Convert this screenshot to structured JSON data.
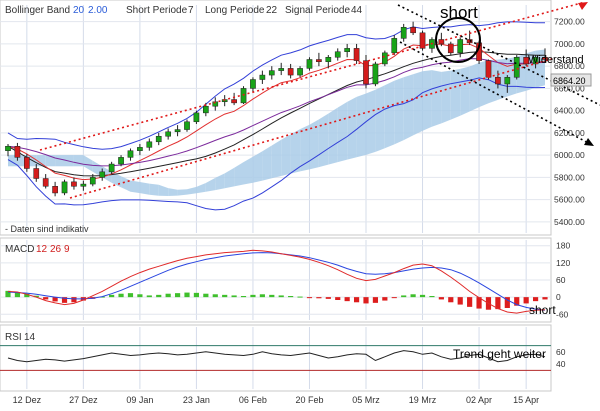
{
  "chart_data": [
    {
      "panel": "price",
      "type": "candlestick",
      "title": "Bollinger Band",
      "indicator_params": {
        "bollinger_period": "20",
        "bollinger_dev": "2.00",
        "short_label": "Short Periode",
        "short_value": "7",
        "long_label": "Long Periode",
        "long_value": "22",
        "signal_label": "Signal Periode",
        "signal_value": "44"
      },
      "ylim": [
        5300,
        7350
      ],
      "yticks": [
        "7200.00",
        "7000.00",
        "6800.00",
        "6600.00",
        "6400.00",
        "6200.00",
        "6000.00",
        "5800.00",
        "5600.00",
        "5400.00"
      ],
      "ytick_values": [
        7200,
        7000,
        6800,
        6600,
        6400,
        6200,
        6000,
        5800,
        5600,
        5400
      ],
      "last_price_label": "6864.20",
      "note": "- Daten sind indikativ",
      "annotations": {
        "short": "short",
        "resistance": "Widerstand"
      },
      "candles": [
        [
          6040,
          6100,
          5990,
          6080
        ],
        [
          6080,
          6110,
          5950,
          5980
        ],
        [
          5980,
          6010,
          5850,
          5880
        ],
        [
          5880,
          5920,
          5760,
          5790
        ],
        [
          5790,
          5830,
          5700,
          5720
        ],
        [
          5720,
          5760,
          5630,
          5660
        ],
        [
          5660,
          5780,
          5640,
          5760
        ],
        [
          5760,
          5800,
          5690,
          5720
        ],
        [
          5720,
          5770,
          5680,
          5740
        ],
        [
          5740,
          5830,
          5720,
          5800
        ],
        [
          5800,
          5880,
          5770,
          5850
        ],
        [
          5850,
          5940,
          5830,
          5920
        ],
        [
          5920,
          6000,
          5900,
          5980
        ],
        [
          5980,
          6060,
          5950,
          6040
        ],
        [
          6040,
          6100,
          6000,
          6070
        ],
        [
          6070,
          6150,
          6040,
          6120
        ],
        [
          6120,
          6200,
          6090,
          6170
        ],
        [
          6170,
          6240,
          6140,
          6210
        ],
        [
          6210,
          6270,
          6170,
          6230
        ],
        [
          6230,
          6320,
          6210,
          6300
        ],
        [
          6300,
          6400,
          6280,
          6380
        ],
        [
          6380,
          6470,
          6350,
          6440
        ],
        [
          6440,
          6520,
          6400,
          6480
        ],
        [
          6480,
          6540,
          6440,
          6500
        ],
        [
          6500,
          6560,
          6450,
          6470
        ],
        [
          6470,
          6620,
          6460,
          6600
        ],
        [
          6600,
          6700,
          6570,
          6680
        ],
        [
          6680,
          6760,
          6640,
          6720
        ],
        [
          6720,
          6800,
          6680,
          6760
        ],
        [
          6760,
          6830,
          6720,
          6780
        ],
        [
          6780,
          6820,
          6690,
          6720
        ],
        [
          6720,
          6800,
          6700,
          6780
        ],
        [
          6780,
          6880,
          6760,
          6860
        ],
        [
          6860,
          6920,
          6800,
          6840
        ],
        [
          6840,
          6900,
          6780,
          6880
        ],
        [
          6880,
          6960,
          6850,
          6930
        ],
        [
          6930,
          7000,
          6880,
          6960
        ],
        [
          6960,
          7000,
          6820,
          6850
        ],
        [
          6850,
          6900,
          6600,
          6640
        ],
        [
          6640,
          6840,
          6620,
          6820
        ],
        [
          6820,
          6940,
          6800,
          6920
        ],
        [
          6920,
          7080,
          6900,
          7050
        ],
        [
          7050,
          7180,
          7020,
          7150
        ],
        [
          7150,
          7200,
          7080,
          7100
        ],
        [
          7100,
          7120,
          6940,
          6960
        ],
        [
          6960,
          7060,
          6920,
          7040
        ],
        [
          7040,
          7100,
          6980,
          7000
        ],
        [
          7000,
          7020,
          6900,
          6920
        ],
        [
          6920,
          7060,
          6880,
          7040
        ],
        [
          7040,
          7120,
          6990,
          7010
        ],
        [
          7010,
          7030,
          6820,
          6850
        ],
        [
          6850,
          6860,
          6680,
          6700
        ],
        [
          6700,
          6760,
          6600,
          6640
        ],
        [
          6640,
          6720,
          6560,
          6700
        ],
        [
          6700,
          6900,
          6680,
          6880
        ],
        [
          6880,
          6950,
          6800,
          6820
        ],
        [
          6820,
          6900,
          6780,
          6880
        ],
        [
          6880,
          6960,
          6830,
          6860
        ]
      ],
      "x_tick_labels": [
        "12 Dez",
        "27 Dez",
        "09 Jan",
        "23 Jan",
        "06 Feb",
        "20 Feb",
        "05 Mrz",
        "19 Mrz",
        "02 Apr",
        "15 Apr"
      ],
      "x_tick_index": [
        2,
        8,
        14,
        20,
        26,
        32,
        38,
        44,
        50,
        55
      ]
    },
    {
      "panel": "macd",
      "type": "bar+line",
      "label": "MACD",
      "params": [
        "12",
        "26",
        "9"
      ],
      "ylim": [
        -80,
        200
      ],
      "yticks": [
        "180",
        "120",
        "60",
        "0",
        "-60"
      ],
      "ytick_values": [
        180,
        120,
        60,
        0,
        -60
      ],
      "annotation": "short",
      "histogram": [
        22,
        18,
        12,
        5,
        -8,
        -15,
        -20,
        -18,
        -12,
        -6,
        2,
        8,
        12,
        14,
        10,
        6,
        8,
        12,
        14,
        16,
        15,
        12,
        10,
        8,
        6,
        4,
        8,
        10,
        8,
        6,
        4,
        2,
        -2,
        -4,
        -6,
        -10,
        -14,
        -18,
        -22,
        -20,
        -12,
        -2,
        6,
        10,
        8,
        4,
        -8,
        -18,
        -26,
        -34,
        -40,
        -44,
        -42,
        -38,
        -30,
        -22,
        -14,
        -8
      ],
      "macd": [
        20,
        18,
        10,
        0,
        -12,
        -20,
        -26,
        -22,
        -10,
        5,
        20,
        38,
        56,
        72,
        86,
        98,
        108,
        118,
        128,
        136,
        142,
        148,
        152,
        156,
        158,
        160,
        164,
        162,
        158,
        152,
        146,
        140,
        132,
        122,
        110,
        96,
        80,
        66,
        58,
        62,
        74,
        86,
        100,
        112,
        116,
        110,
        92,
        70,
        46,
        20,
        -2,
        -22,
        -40,
        -52,
        -56,
        -50,
        -46,
        -44
      ],
      "signal": [
        18,
        16,
        14,
        10,
        5,
        0,
        -4,
        -6,
        -6,
        -4,
        2,
        12,
        24,
        38,
        52,
        66,
        80,
        94,
        106,
        116,
        124,
        132,
        138,
        144,
        148,
        152,
        155,
        156,
        155,
        152,
        148,
        144,
        138,
        130,
        122,
        112,
        100,
        90,
        82,
        80,
        82,
        86,
        92,
        98,
        102,
        104,
        102,
        96,
        84,
        68,
        50,
        30,
        10,
        -10,
        -26,
        -36,
        -42,
        -46
      ]
    },
    {
      "panel": "rsi",
      "type": "line",
      "label": "RSI",
      "param": "14",
      "ylim": [
        0,
        100
      ],
      "yticks": [
        "60",
        "40"
      ],
      "ytick_values": [
        60,
        40
      ],
      "reference_lines": [
        70,
        30
      ],
      "annotation": "Trend geht weiter",
      "values": [
        50,
        46,
        44,
        46,
        48,
        47,
        45,
        47,
        49,
        52,
        55,
        58,
        56,
        54,
        55,
        57,
        58,
        57,
        55,
        56,
        58,
        60,
        58,
        56,
        55,
        54,
        56,
        60,
        57,
        55,
        54,
        56,
        58,
        54,
        50,
        52,
        55,
        57,
        56,
        46,
        52,
        58,
        62,
        60,
        56,
        58,
        52,
        48,
        50,
        54,
        56,
        50,
        44,
        46,
        52,
        55,
        56,
        52
      ]
    }
  ]
}
